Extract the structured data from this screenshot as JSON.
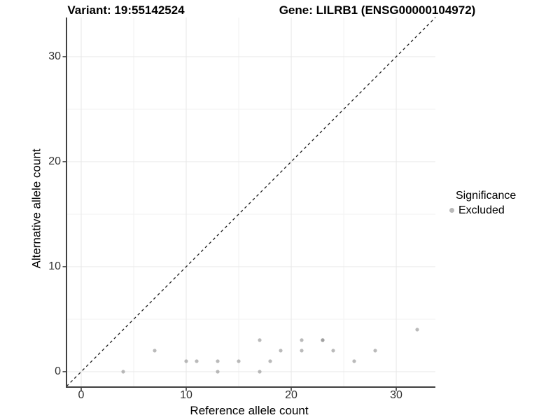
{
  "chart_data": {
    "type": "scatter",
    "title_left": "Variant: 19:55142524",
    "title_right": "Gene: LILRB1 (ENSG00000104972)",
    "xlabel": "Reference allele count",
    "ylabel": "Alternative allele count",
    "xlim": [
      -1.4,
      33.73
    ],
    "ylim": [
      -1.47,
      33.73
    ],
    "x_ticks": [
      0,
      10,
      20,
      30
    ],
    "y_ticks": [
      0,
      10,
      20,
      30
    ],
    "x_minor_ticks": [
      5,
      15,
      25
    ],
    "y_minor_ticks": [
      5,
      15,
      25
    ],
    "grid": true,
    "legend_position": "right",
    "identity_line": {
      "style": "dashed",
      "equation": "y = x"
    },
    "legend": {
      "title": "Significance",
      "items": [
        {
          "label": "Excluded",
          "color": "#b9b9b9"
        }
      ]
    },
    "series": [
      {
        "name": "Excluded",
        "color": "#8f8f8f",
        "opacity": 0.62,
        "points": [
          [
            4,
            0
          ],
          [
            7,
            2
          ],
          [
            10,
            1
          ],
          [
            11,
            1
          ],
          [
            13,
            0
          ],
          [
            13,
            1
          ],
          [
            15,
            1
          ],
          [
            17,
            0
          ],
          [
            17,
            3
          ],
          [
            18,
            1
          ],
          [
            19,
            2
          ],
          [
            21,
            2
          ],
          [
            21,
            3
          ],
          [
            23,
            3
          ],
          [
            23,
            3
          ],
          [
            24,
            2
          ],
          [
            26,
            1
          ],
          [
            28,
            2
          ],
          [
            32,
            4
          ]
        ]
      }
    ]
  }
}
